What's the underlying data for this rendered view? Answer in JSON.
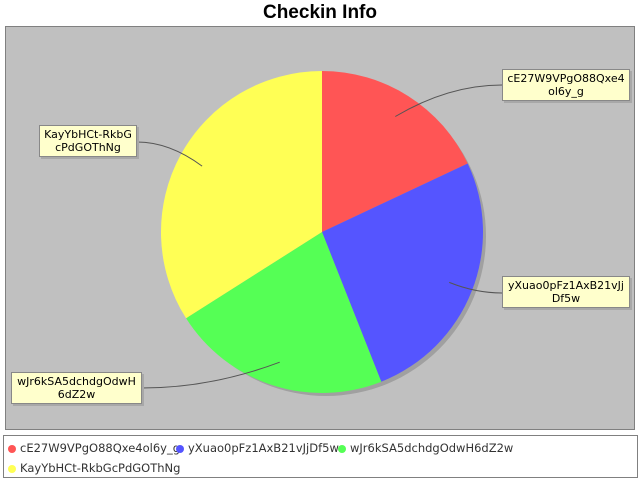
{
  "chart_data": {
    "type": "pie",
    "title": "Checkin Info",
    "start_angle_deg": 90,
    "direction": "clockwise",
    "slices": [
      {
        "label": "cE27W9VPgO88Qxe4ol6y_g",
        "value": 18,
        "color": "#ff5555"
      },
      {
        "label": "yXuao0pFz1AxB21vJjDf5w",
        "value": 26,
        "color": "#5555ff"
      },
      {
        "label": "wJr6kSA5dchdgOdwH6dZ2w",
        "value": 22,
        "color": "#55ff55"
      },
      {
        "label": "KayYbHCt-RkbGcPdGOThNg",
        "value": 34,
        "color": "#ffff55"
      }
    ],
    "legend_position": "bottom"
  }
}
